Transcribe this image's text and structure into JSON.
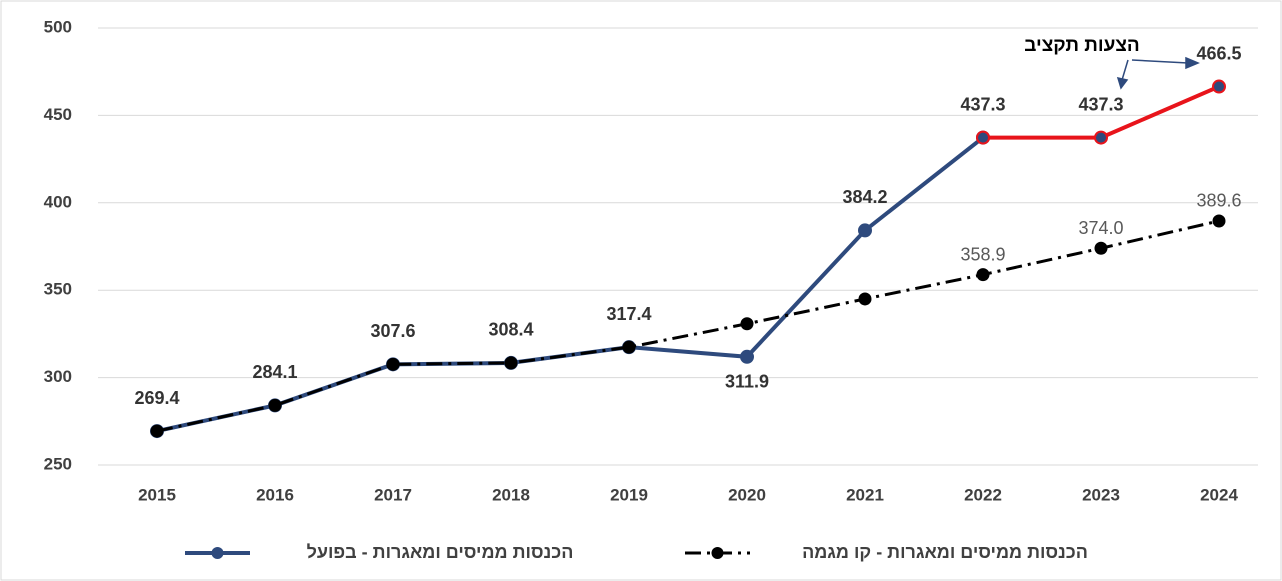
{
  "chart_data": {
    "type": "line",
    "categories": [
      "2015",
      "2016",
      "2017",
      "2018",
      "2019",
      "2020",
      "2021",
      "2022",
      "2023",
      "2024"
    ],
    "series": [
      {
        "name": "הכנסות ממיסים ומאגרות - בפועל",
        "color": "#2E4A7D",
        "dash": "solid",
        "values": [
          269.4,
          284.1,
          307.6,
          308.4,
          317.4,
          311.9,
          384.2,
          437.3,
          null,
          null
        ]
      },
      {
        "name": "הכנסות ממיסים ומאגרות - קו מגמה",
        "color": "#000000",
        "dash": "dashdot",
        "values": [
          269.4,
          284.1,
          307.6,
          308.4,
          317.4,
          330.8,
          345.0,
          358.9,
          374.0,
          389.6
        ],
        "value_labels": [
          null,
          null,
          null,
          null,
          null,
          null,
          null,
          "358.9",
          "374.0",
          "389.6"
        ]
      },
      {
        "color": "#E8141B",
        "marker_color": "#2E4A7D",
        "dash": "solid",
        "values": [
          null,
          null,
          null,
          null,
          null,
          null,
          null,
          437.3,
          437.3,
          466.5
        ],
        "value_labels": [
          null,
          null,
          null,
          null,
          null,
          null,
          null,
          null,
          "437.3",
          "466.5"
        ]
      }
    ],
    "annotation": "הצעות תקציב",
    "ylim": [
      250,
      500
    ],
    "yticks": [
      250,
      300,
      350,
      400,
      450,
      500
    ],
    "grid": true
  }
}
